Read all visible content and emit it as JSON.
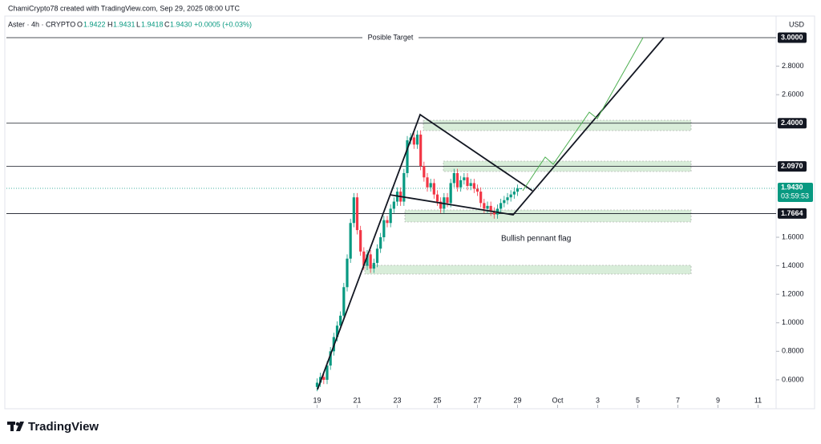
{
  "header": {
    "credit": "ChamiCrypto78 created with TradingView.com, Sep 29, 2025 08:00 UTC",
    "symbol": "Aster · 4h · CRYPTO",
    "open_label": "O",
    "open": "1.9422",
    "high_label": "H",
    "high": "1.9431",
    "low_label": "L",
    "low": "1.9418",
    "close_label": "C",
    "close": "1.9430",
    "change": "+0.0005 (+0.03%)",
    "currency": "USD"
  },
  "footer": {
    "brand": "TradingView"
  },
  "chart_data": {
    "type": "candlestick",
    "x": [
      19,
      19.1667,
      19.3333,
      19.5,
      19.6667,
      19.8333,
      20,
      20.1667,
      20.3333,
      20.5,
      20.6667,
      20.8333,
      21,
      21.1667,
      21.3333,
      21.5,
      21.6667,
      21.8333,
      22,
      22.1667,
      22.3333,
      22.5,
      22.6667,
      22.8333,
      23,
      23.1667,
      23.3333,
      23.5,
      23.6667,
      23.8333,
      24,
      24.1667,
      24.3333,
      24.5,
      24.6667,
      24.8333,
      25,
      25.1667,
      25.3333,
      25.5,
      25.6667,
      25.8333,
      26,
      26.1667,
      26.3333,
      26.5,
      26.6667,
      26.8333,
      27,
      27.1667,
      27.3333,
      27.5,
      27.6667,
      27.8333,
      28,
      28.1667,
      28.3333,
      28.5,
      28.6667,
      28.8333,
      29,
      29.1667
    ],
    "open": [
      0.55,
      0.58,
      0.62,
      0.6,
      0.7,
      0.8,
      0.9,
      0.98,
      1.05,
      1.25,
      1.45,
      1.7,
      1.88,
      1.65,
      1.5,
      1.4,
      1.48,
      1.38,
      1.42,
      1.52,
      1.6,
      1.72,
      1.7,
      1.8,
      1.85,
      1.92,
      1.85,
      2.05,
      2.28,
      2.3,
      2.25,
      2.32,
      2.1,
      2.02,
      1.95,
      1.98,
      1.9,
      1.85,
      1.8,
      1.88,
      1.84,
      1.98,
      2.05,
      1.95,
      2.0,
      2.02,
      1.96,
      1.98,
      1.94,
      1.92,
      1.84,
      1.8,
      1.82,
      1.78,
      1.76,
      1.8,
      1.84,
      1.86,
      1.88,
      1.9,
      1.92,
      1.9422
    ],
    "high": [
      0.61,
      0.65,
      0.65,
      0.73,
      0.83,
      0.93,
      1.01,
      1.08,
      1.28,
      1.48,
      1.73,
      1.91,
      1.91,
      1.68,
      1.53,
      1.51,
      1.51,
      1.45,
      1.55,
      1.63,
      1.75,
      1.75,
      1.83,
      1.88,
      1.95,
      1.95,
      2.08,
      2.31,
      2.33,
      2.33,
      2.35,
      2.35,
      2.13,
      2.05,
      2.01,
      2.01,
      1.93,
      1.88,
      1.91,
      1.91,
      2.01,
      2.08,
      2.08,
      2.03,
      2.05,
      2.05,
      2.01,
      2.01,
      1.97,
      1.95,
      1.87,
      1.85,
      1.85,
      1.81,
      1.83,
      1.87,
      1.89,
      1.91,
      1.93,
      1.95,
      1.97,
      1.9431
    ],
    "low": [
      0.52,
      0.55,
      0.57,
      0.57,
      0.67,
      0.77,
      0.87,
      0.95,
      1.02,
      1.22,
      1.42,
      1.67,
      1.62,
      1.47,
      1.37,
      1.37,
      1.35,
      1.35,
      1.39,
      1.49,
      1.57,
      1.67,
      1.67,
      1.77,
      1.82,
      1.82,
      1.82,
      2.02,
      2.25,
      2.22,
      2.22,
      2.07,
      1.99,
      1.92,
      1.92,
      1.87,
      1.82,
      1.77,
      1.77,
      1.81,
      1.81,
      1.95,
      1.92,
      1.92,
      1.97,
      1.93,
      1.93,
      1.91,
      1.89,
      1.81,
      1.77,
      1.77,
      1.75,
      1.73,
      1.73,
      1.77,
      1.81,
      1.83,
      1.85,
      1.87,
      1.89,
      1.9418
    ],
    "close": [
      0.58,
      0.62,
      0.6,
      0.7,
      0.8,
      0.9,
      0.98,
      1.05,
      1.25,
      1.45,
      1.7,
      1.88,
      1.65,
      1.5,
      1.4,
      1.48,
      1.38,
      1.42,
      1.52,
      1.6,
      1.72,
      1.7,
      1.8,
      1.85,
      1.92,
      1.85,
      2.05,
      2.28,
      2.3,
      2.25,
      2.32,
      2.1,
      2.02,
      1.95,
      1.98,
      1.9,
      1.85,
      1.8,
      1.88,
      1.84,
      1.98,
      2.05,
      1.95,
      2.0,
      2.02,
      1.96,
      1.98,
      1.94,
      1.92,
      1.84,
      1.8,
      1.82,
      1.78,
      1.76,
      1.8,
      1.84,
      1.86,
      1.88,
      1.9,
      1.92,
      1.9422,
      1.943
    ],
    "up_color": "#089981",
    "down_color": "#f23645",
    "xlim": [
      3.5,
      41.9
    ],
    "xticks": [
      19,
      21,
      23,
      25,
      27,
      29,
      {
        "value": 31,
        "label": "Oct"
      },
      {
        "value": 33,
        "label": "3"
      },
      {
        "value": 35,
        "label": "5"
      },
      {
        "value": 37,
        "label": "7"
      },
      {
        "value": 39,
        "label": "9"
      },
      {
        "value": 41,
        "label": "11"
      }
    ],
    "ylim": [
      0.5,
      3.1
    ],
    "yticks": [
      {
        "value": 0.6,
        "label": "0.6000"
      },
      {
        "value": 0.8,
        "label": "0.8000"
      },
      {
        "value": 1.0,
        "label": "1.0000"
      },
      {
        "value": 1.2,
        "label": "1.2000"
      },
      {
        "value": 1.4,
        "label": "1.4000"
      },
      {
        "value": 1.6,
        "label": "1.6000"
      },
      {
        "value": 2.6,
        "label": "2.6000"
      },
      {
        "value": 2.8,
        "label": "2.8000"
      }
    ],
    "price_lines": [
      {
        "value": 3.0,
        "label": "3.0000"
      },
      {
        "value": 2.4,
        "label": "2.4000"
      },
      {
        "value": 2.097,
        "label": "2.0970"
      },
      {
        "value": 1.7664,
        "label": "1.7664"
      }
    ],
    "last_price": {
      "value": 1.943,
      "label": "1.9430",
      "countdown": "03:59:53"
    },
    "annotations": {
      "target": "Posible Target",
      "pattern": "Bullish pennant flag"
    }
  }
}
